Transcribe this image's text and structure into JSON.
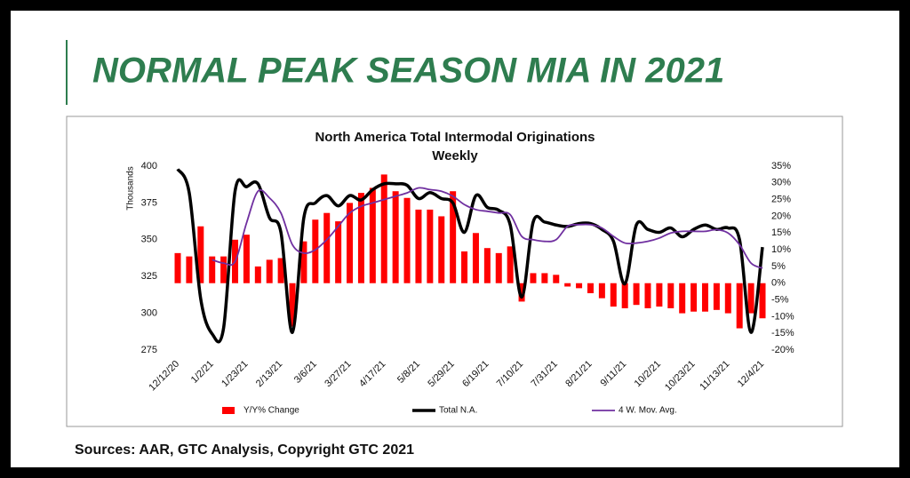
{
  "title": "NORMAL PEAK SEASON MIA IN 2021",
  "footer": "Sources: AAR, GTC Analysis, Copyright GTC 2021",
  "chart_data": {
    "type": "combo",
    "title": "North America Total Intermodal Originations",
    "subtitle": "Weekly",
    "ylabel": "Thousands",
    "categories": [
      "12/12/20",
      null,
      null,
      "1/2/21",
      null,
      null,
      "1/23/21",
      null,
      null,
      "2/13/21",
      null,
      null,
      "3/6/21",
      null,
      null,
      "3/27/21",
      null,
      null,
      "4/17/21",
      null,
      null,
      "5/8/21",
      null,
      null,
      "5/29/21",
      null,
      null,
      "6/19/21",
      null,
      null,
      "7/10/21",
      null,
      null,
      "7/31/21",
      null,
      null,
      "8/21/21",
      null,
      null,
      "9/11/21",
      null,
      null,
      "10/2/21",
      null,
      null,
      "10/23/21",
      null,
      null,
      "11/13/21",
      null,
      null,
      "12/4/21"
    ],
    "ylim": [
      275,
      400
    ],
    "yticks": [
      275,
      300,
      325,
      350,
      375,
      400
    ],
    "y2lim": [
      -20,
      35
    ],
    "y2ticks": [
      {
        "value": -20,
        "label": "-20%"
      },
      {
        "value": -15,
        "label": "-15%"
      },
      {
        "value": -10,
        "label": "-10%"
      },
      {
        "value": -5,
        "label": "-5%"
      },
      {
        "value": 0,
        "label": "0%"
      },
      {
        "value": 5,
        "label": "5%"
      },
      {
        "value": 10,
        "label": "10%"
      },
      {
        "value": 15,
        "label": "15%"
      },
      {
        "value": 20,
        "label": "20%"
      },
      {
        "value": 25,
        "label": "25%"
      },
      {
        "value": 30,
        "label": "30%"
      },
      {
        "value": 35,
        "label": "35%"
      }
    ],
    "legend": "bottom",
    "series": [
      {
        "name": "Y/Y% Change",
        "type": "bar",
        "axis": "y2",
        "color": "#ff0000",
        "values": [
          9,
          8,
          17,
          8,
          8,
          13,
          14.5,
          5,
          7,
          7.5,
          -13,
          12.5,
          19,
          21,
          18.5,
          24,
          27,
          28.5,
          32.5,
          27.5,
          25.5,
          22,
          22,
          20,
          27.5,
          9.5,
          15,
          10.5,
          9,
          11,
          -5.5,
          3,
          3,
          2.5,
          -1,
          -1.5,
          -3,
          -4.5,
          -7,
          -7.5,
          -6.5,
          -7.5,
          -7,
          -7.5,
          -9,
          -8.5,
          -8.5,
          -8,
          -9,
          -13.5,
          -9,
          -10.5
        ]
      },
      {
        "name": "Total N.A.",
        "type": "line",
        "axis": "y",
        "color": "#000000",
        "values": [
          398,
          382,
          310,
          286,
          290,
          383,
          386,
          388,
          365,
          355,
          287,
          365,
          375,
          380,
          373,
          380,
          377,
          384,
          388,
          388,
          387,
          378,
          382,
          378,
          375,
          355,
          380,
          372,
          370,
          360,
          311,
          362,
          362,
          360,
          359,
          361,
          361,
          357,
          349,
          320,
          360,
          357,
          355,
          358,
          352,
          357,
          360,
          357,
          358,
          350,
          287,
          345
        ]
      },
      {
        "name": "4 W. Mov. Avg.",
        "type": "line",
        "axis": "y2",
        "color": "#7030a0",
        "values": [
          null,
          null,
          null,
          7,
          6,
          6.5,
          18,
          27.5,
          25.5,
          21,
          11.5,
          9,
          10,
          13,
          17,
          21,
          23,
          24,
          25,
          26,
          27,
          28.5,
          28,
          27.5,
          26,
          23.5,
          22,
          21.5,
          21,
          20.5,
          14,
          13,
          12.5,
          13,
          17,
          17.5,
          17.5,
          16.5,
          14,
          12,
          12,
          12.5,
          13.5,
          15,
          15.5,
          15.5,
          15.5,
          16,
          15,
          11.5,
          6,
          4.5
        ]
      }
    ]
  }
}
